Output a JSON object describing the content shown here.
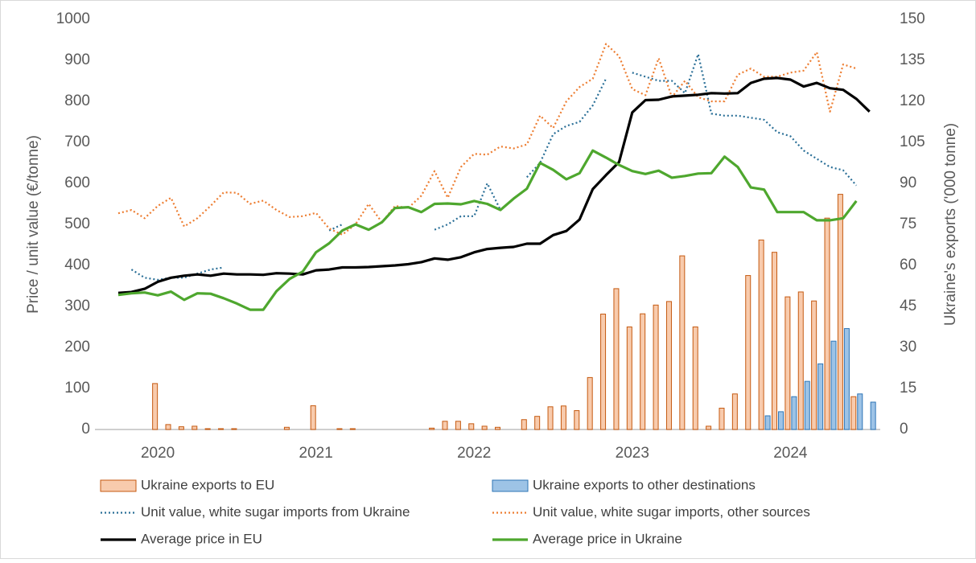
{
  "chart_data": {
    "type": "combo",
    "y_label": "Price / unit value (€/tonne)",
    "y2_label": "Ukraine's exports ('000 tonne)",
    "categories": [
      null,
      null,
      null,
      "2020",
      null,
      null,
      null,
      null,
      null,
      null,
      null,
      null,
      null,
      null,
      null,
      "2021",
      null,
      null,
      null,
      null,
      null,
      null,
      null,
      null,
      null,
      null,
      null,
      "2022",
      null,
      null,
      null,
      null,
      null,
      null,
      null,
      null,
      null,
      null,
      null,
      "2023",
      null,
      null,
      null,
      null,
      null,
      null,
      null,
      null,
      null,
      null,
      null,
      "2024",
      null,
      null,
      null,
      null,
      null,
      null
    ],
    "ylim": [
      0,
      1000
    ],
    "yticks": [
      0,
      100,
      200,
      300,
      400,
      500,
      600,
      700,
      800,
      900,
      1000
    ],
    "y2lim": [
      0,
      150
    ],
    "y2ticks": [
      0,
      15,
      30,
      45,
      60,
      75,
      90,
      105,
      120,
      135,
      150
    ],
    "legend": "bottom",
    "series": [
      {
        "name": "Ukraine exports to EU",
        "type": "bar",
        "axis": "y2",
        "color": "#f8cbad",
        "edge": "#c55a11",
        "values": [
          null,
          null,
          null,
          16.8,
          1.8,
          1.0,
          1.2,
          0.3,
          0.3,
          0.3,
          null,
          null,
          null,
          0.8,
          null,
          8.7,
          null,
          0.3,
          0.3,
          null,
          null,
          null,
          null,
          null,
          0.5,
          3.0,
          3.0,
          2.1,
          1.2,
          0.8,
          null,
          3.6,
          4.8,
          8.3,
          8.6,
          6.9,
          19.0,
          42.2,
          51.5,
          37.5,
          42.3,
          45.5,
          46.8,
          63.5,
          37.5,
          1.2,
          7.8,
          13.0,
          56.3,
          69.3,
          64.8,
          48.5,
          50.3,
          47.0,
          77.3,
          86.0,
          12.0,
          null
        ]
      },
      {
        "name": "Ukraine exports to other destinations",
        "type": "bar",
        "axis": "y2",
        "color": "#9dc3e6",
        "edge": "#2e75b6",
        "values": [
          null,
          null,
          null,
          null,
          null,
          null,
          null,
          null,
          null,
          null,
          null,
          null,
          null,
          null,
          null,
          null,
          null,
          null,
          null,
          null,
          null,
          null,
          null,
          null,
          null,
          null,
          null,
          null,
          null,
          null,
          null,
          null,
          null,
          null,
          null,
          null,
          null,
          null,
          null,
          null,
          null,
          null,
          null,
          null,
          null,
          null,
          null,
          null,
          null,
          5.0,
          6.5,
          12.0,
          17.6,
          24.0,
          32.3,
          36.9,
          13.0,
          10.0
        ]
      },
      {
        "name": "Unit value, white sugar imports from Ukraine",
        "type": "line",
        "dash": "dotted",
        "color": "#2a6f97",
        "values": [
          null,
          390,
          370,
          365,
          370,
          370,
          380,
          390,
          395,
          null,
          null,
          null,
          null,
          null,
          null,
          null,
          485,
          500,
          null,
          null,
          null,
          null,
          null,
          null,
          487,
          500,
          520,
          520,
          600,
          535,
          null,
          615,
          650,
          720,
          740,
          750,
          790,
          855,
          null,
          870,
          860,
          850,
          850,
          820,
          915,
          770,
          765,
          765,
          760,
          755,
          725,
          715,
          680,
          660,
          640,
          632,
          595,
          null
        ]
      },
      {
        "name": "Unit value, white sugar imports, other sources",
        "type": "line",
        "dash": "dotted",
        "color": "#ed7d31",
        "values": [
          527,
          535,
          515,
          545,
          565,
          495,
          515,
          545,
          578,
          577,
          550,
          558,
          535,
          518,
          520,
          528,
          490,
          475,
          500,
          550,
          505,
          545,
          540,
          570,
          630,
          565,
          640,
          672,
          670,
          690,
          685,
          695,
          765,
          735,
          800,
          835,
          855,
          940,
          910,
          830,
          815,
          905,
          810,
          850,
          810,
          800,
          800,
          865,
          880,
          860,
          860,
          870,
          875,
          920,
          775,
          890,
          880,
          null
        ]
      },
      {
        "name": "Average price in EU",
        "type": "line",
        "dash": "solid",
        "color": "#000000",
        "values": [
          333,
          335,
          343,
          360,
          370,
          375,
          378,
          375,
          380,
          378,
          378,
          377,
          381,
          380,
          378,
          388,
          390,
          395,
          395,
          396,
          398,
          400,
          403,
          408,
          417,
          414,
          420,
          432,
          440,
          443,
          445,
          453,
          453,
          474,
          484,
          512,
          586,
          620,
          652,
          773,
          803,
          804,
          812,
          814,
          816,
          820,
          819,
          820,
          845,
          855,
          857,
          853,
          836,
          845,
          832,
          828,
          806,
          775
        ]
      },
      {
        "name": "Average price in Ukraine",
        "type": "line",
        "dash": "solid",
        "color": "#4ea72e",
        "values": [
          328,
          332,
          334,
          327,
          336,
          316,
          332,
          331,
          320,
          307,
          292,
          292,
          337,
          367,
          385,
          432,
          454,
          485,
          500,
          487,
          505,
          540,
          542,
          530,
          550,
          551,
          549,
          557,
          550,
          535,
          563,
          587,
          650,
          633,
          610,
          625,
          680,
          663,
          645,
          630,
          623,
          631,
          614,
          618,
          624,
          625,
          665,
          640,
          590,
          585,
          530,
          530,
          530,
          510,
          510,
          515,
          557,
          null
        ]
      }
    ]
  }
}
